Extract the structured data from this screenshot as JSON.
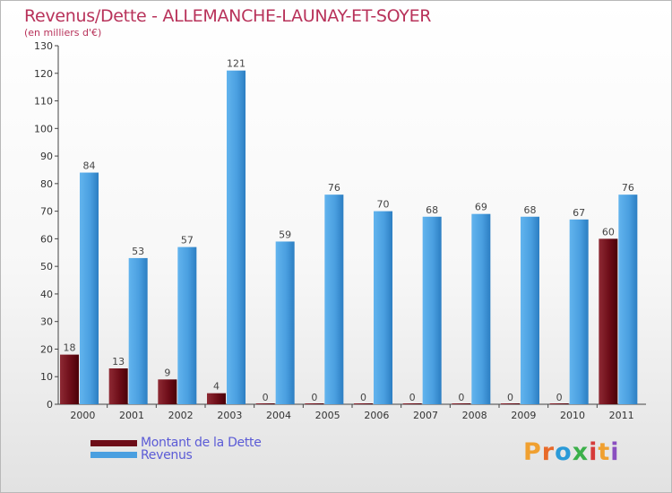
{
  "title": "Revenus/Dette - ALLEMANCHE-LAUNAY-ET-SOYER",
  "subtitle": "(en milliers d'€)",
  "chart_data": {
    "type": "bar",
    "title": "Revenus/Dette - ALLEMANCHE-LAUNAY-ET-SOYER",
    "subtitle": "(en milliers d'€)",
    "categories": [
      "2000",
      "2001",
      "2002",
      "2003",
      "2004",
      "2005",
      "2006",
      "2007",
      "2008",
      "2009",
      "2010",
      "2011"
    ],
    "series": [
      {
        "name": "Montant de la Dette",
        "color": "#7a1620",
        "values": [
          18,
          13,
          9,
          4,
          0,
          0,
          0,
          0,
          0,
          0,
          0,
          60
        ]
      },
      {
        "name": "Revenus",
        "color": "#4a9fe0",
        "values": [
          84,
          53,
          57,
          121,
          59,
          76,
          70,
          68,
          69,
          68,
          67,
          76
        ]
      }
    ],
    "ylim": [
      0,
      130
    ],
    "yticks": [
      0,
      10,
      20,
      30,
      40,
      50,
      60,
      70,
      80,
      90,
      100,
      110,
      120,
      130
    ],
    "grid": false,
    "legend_position": "bottom-left"
  },
  "legend": {
    "items": [
      "Montant de la Dette",
      "Revenus"
    ]
  },
  "logo": {
    "text": "Proxiti",
    "letters": [
      "P",
      "r",
      "o",
      "x",
      "i",
      "t",
      "i"
    ],
    "colors": [
      "#f0a030",
      "#e86a2a",
      "#2a9ad8",
      "#3bb04a",
      "#d63a3a",
      "#f0a030",
      "#8a4fc0"
    ]
  }
}
